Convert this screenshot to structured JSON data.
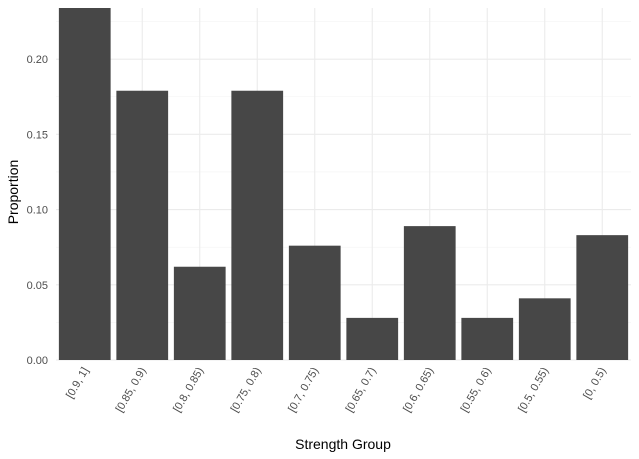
{
  "chart_data": {
    "type": "bar",
    "xlabel": "Strength Group",
    "ylabel": "Proportion",
    "categories": [
      "[0.9, 1]",
      "[0.85, 0.9)",
      "[0.8, 0.85)",
      "[0.75, 0.8)",
      "[0.7, 0.75)",
      "[0.65, 0.7)",
      "[0.6, 0.65)",
      "[0.55, 0.6)",
      "[0.5, 0.55)",
      "[0, 0.5)"
    ],
    "values": [
      0.234,
      0.179,
      0.062,
      0.179,
      0.076,
      0.028,
      0.089,
      0.028,
      0.041,
      0.083
    ],
    "ylim": [
      0,
      0.234
    ],
    "yticks": [
      0.0,
      0.05,
      0.1,
      0.15,
      0.2
    ],
    "ytick_labels": [
      "0.00",
      "0.05",
      "0.10",
      "0.15",
      "0.20"
    ],
    "grid": true,
    "bar_color": "#474747",
    "grid_major_color": "#ebebeb",
    "grid_minor_color": "#f3f3f3"
  }
}
